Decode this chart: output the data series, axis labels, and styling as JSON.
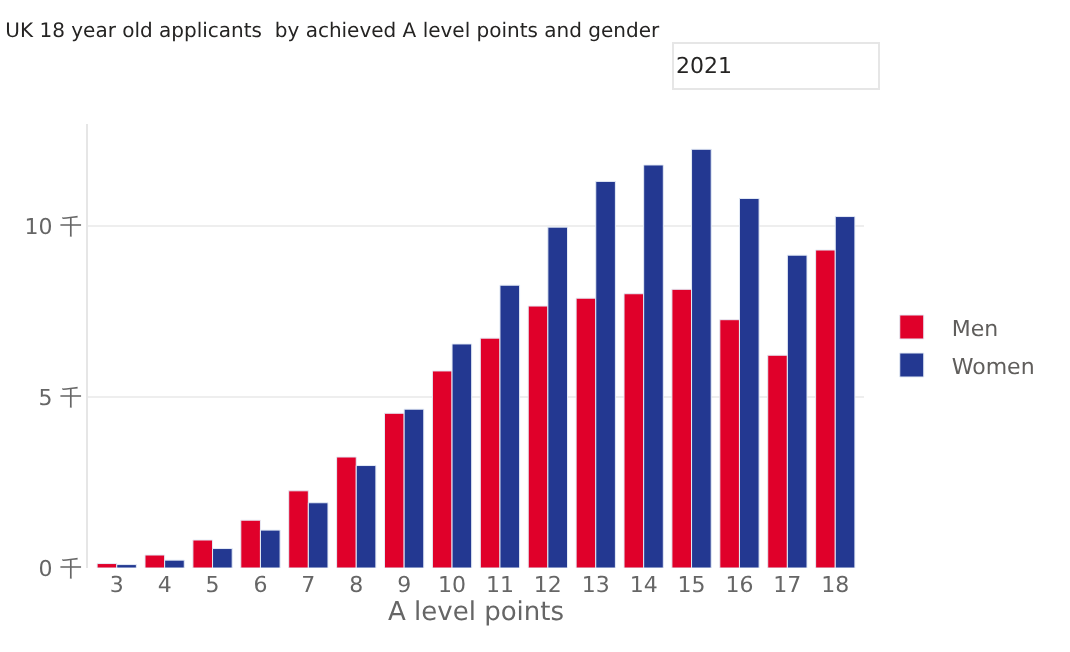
{
  "chart_data": {
    "type": "bar",
    "title": "UK 18 year old applicants  by achieved A level points and gender",
    "xlabel": "A level points",
    "categories": [
      "3",
      "4",
      "5",
      "6",
      "7",
      "8",
      "9",
      "10",
      "11",
      "12",
      "13",
      "14",
      "15",
      "16",
      "17",
      "18"
    ],
    "series": [
      {
        "name": "Men",
        "color": "#e0002a",
        "values": [
          0.13,
          0.38,
          0.82,
          1.4,
          2.26,
          3.25,
          4.53,
          5.77,
          6.73,
          7.67,
          7.9,
          8.03,
          8.16,
          7.27,
          6.23,
          9.31
        ]
      },
      {
        "name": "Women",
        "color": "#233891",
        "values": [
          0.1,
          0.23,
          0.57,
          1.11,
          1.91,
          3.0,
          4.65,
          6.56,
          8.28,
          9.98,
          11.32,
          11.8,
          12.26,
          10.82,
          9.16,
          10.29
        ]
      }
    ],
    "ylim": [
      0,
      13
    ],
    "yticks": [
      {
        "value": 0,
        "label": "0 千"
      },
      {
        "value": 5,
        "label": "5 千"
      },
      {
        "value": 10,
        "label": "10 千"
      }
    ],
    "grid": "y",
    "legend": "right",
    "annotations": [
      "2021"
    ]
  }
}
